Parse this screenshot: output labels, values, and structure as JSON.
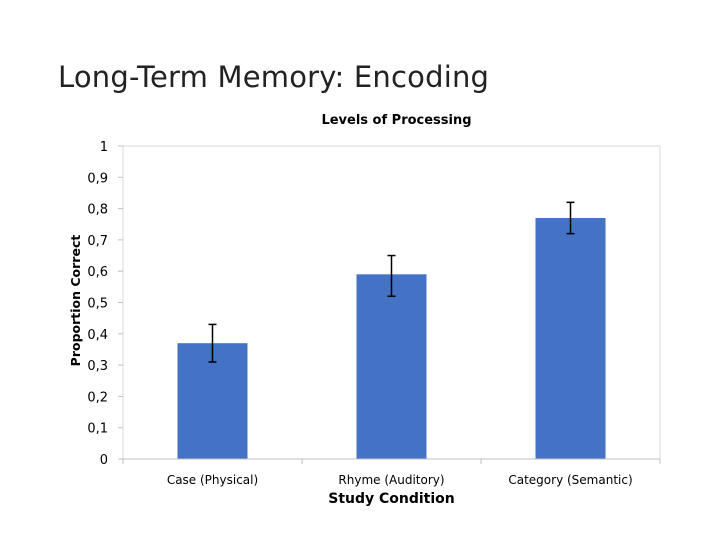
{
  "slide": {
    "title": "Long-Term Memory: Encoding"
  },
  "chart_data": {
    "type": "bar",
    "title": "Levels of Processing",
    "xlabel": "Study Condition",
    "ylabel": "Proportion Correct",
    "categories": [
      "Case (Physical)",
      "Rhyme (Auditory)",
      "Category (Semantic)"
    ],
    "values": [
      0.37,
      0.59,
      0.77
    ],
    "error_bars": {
      "low": [
        0.31,
        0.52,
        0.72
      ],
      "high": [
        0.43,
        0.65,
        0.82
      ]
    },
    "ylim": [
      0,
      1
    ],
    "yticks": [
      "0",
      "0,1",
      "0,2",
      "0,3",
      "0,4",
      "0,5",
      "0,6",
      "0,7",
      "0,8",
      "0,9",
      "1"
    ],
    "bar_color": "#4472C4",
    "grid": false
  }
}
